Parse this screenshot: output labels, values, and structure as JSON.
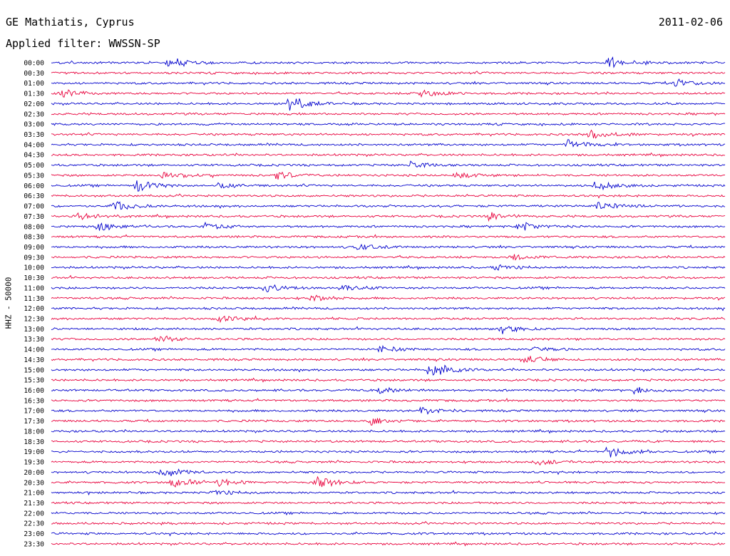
{
  "header": {
    "station": "GE Mathiatis, Cyprus",
    "date": "2011-02-06",
    "filter": "Applied filter: WWSSN-SP"
  },
  "chart_data": {
    "type": "line",
    "title": "GE Mathiatis, Cyprus",
    "subtitle": "Applied filter: WWSSN-SP",
    "ylabel": "HHZ - 50000",
    "xlabel": "",
    "colors": {
      "even_rows": "#0000cc",
      "odd_rows": "#e8003c"
    },
    "row_labels": [
      "00:00",
      "00:30",
      "01:00",
      "01:30",
      "02:00",
      "02:30",
      "03:00",
      "03:30",
      "04:00",
      "04:30",
      "05:00",
      "05:30",
      "06:00",
      "06:30",
      "07:00",
      "07:30",
      "08:00",
      "08:30",
      "09:00",
      "09:30",
      "10:00",
      "10:30",
      "11:00",
      "11:30",
      "12:00",
      "12:30",
      "13:00",
      "13:30",
      "14:00",
      "14:30",
      "15:00",
      "15:30",
      "16:00",
      "16:30",
      "17:00",
      "17:30",
      "18:00",
      "18:30",
      "19:00",
      "19:30",
      "20:00",
      "20:30",
      "21:00",
      "21:30",
      "22:00",
      "22:30",
      "23:00",
      "23:30"
    ],
    "row_duration_minutes": 30,
    "events": [
      {
        "row": 0,
        "minute": 5.2,
        "amp": 1.0
      },
      {
        "row": 0,
        "minute": 24.8,
        "amp": 0.9
      },
      {
        "row": 2,
        "minute": 27.8,
        "amp": 0.6
      },
      {
        "row": 3,
        "minute": 0.4,
        "amp": 0.9
      },
      {
        "row": 3,
        "minute": 16.5,
        "amp": 0.8
      },
      {
        "row": 4,
        "minute": 10.5,
        "amp": 1.3
      },
      {
        "row": 7,
        "minute": 24.0,
        "amp": 0.7
      },
      {
        "row": 8,
        "minute": 23.0,
        "amp": 0.7
      },
      {
        "row": 10,
        "minute": 16.0,
        "amp": 0.5
      },
      {
        "row": 11,
        "minute": 5.0,
        "amp": 0.8
      },
      {
        "row": 11,
        "minute": 10.0,
        "amp": 0.7
      },
      {
        "row": 11,
        "minute": 18.0,
        "amp": 0.6
      },
      {
        "row": 12,
        "minute": 3.8,
        "amp": 1.1
      },
      {
        "row": 12,
        "minute": 7.5,
        "amp": 0.7
      },
      {
        "row": 12,
        "minute": 24.2,
        "amp": 0.9
      },
      {
        "row": 14,
        "minute": 2.8,
        "amp": 1.0
      },
      {
        "row": 14,
        "minute": 24.3,
        "amp": 0.8
      },
      {
        "row": 15,
        "minute": 1.2,
        "amp": 0.7
      },
      {
        "row": 15,
        "minute": 19.5,
        "amp": 0.6
      },
      {
        "row": 16,
        "minute": 2.1,
        "amp": 0.8
      },
      {
        "row": 16,
        "minute": 6.8,
        "amp": 0.7
      },
      {
        "row": 16,
        "minute": 20.8,
        "amp": 0.8
      },
      {
        "row": 18,
        "minute": 13.5,
        "amp": 0.6
      },
      {
        "row": 19,
        "minute": 20.5,
        "amp": 0.6
      },
      {
        "row": 20,
        "minute": 19.8,
        "amp": 0.6
      },
      {
        "row": 22,
        "minute": 9.5,
        "amp": 0.8
      },
      {
        "row": 22,
        "minute": 12.8,
        "amp": 0.6
      },
      {
        "row": 23,
        "minute": 11.6,
        "amp": 0.5
      },
      {
        "row": 25,
        "minute": 7.5,
        "amp": 0.5
      },
      {
        "row": 26,
        "minute": 20.0,
        "amp": 0.8
      },
      {
        "row": 27,
        "minute": 4.7,
        "amp": 0.8
      },
      {
        "row": 28,
        "minute": 14.6,
        "amp": 0.6
      },
      {
        "row": 28,
        "minute": 21.4,
        "amp": 0.6
      },
      {
        "row": 29,
        "minute": 21.0,
        "amp": 0.7
      },
      {
        "row": 30,
        "minute": 16.8,
        "amp": 1.4
      },
      {
        "row": 32,
        "minute": 14.6,
        "amp": 0.6
      },
      {
        "row": 32,
        "minute": 26.0,
        "amp": 0.6
      },
      {
        "row": 34,
        "minute": 16.5,
        "amp": 0.7
      },
      {
        "row": 35,
        "minute": 14.2,
        "amp": 0.6
      },
      {
        "row": 38,
        "minute": 24.8,
        "amp": 1.1
      },
      {
        "row": 39,
        "minute": 21.5,
        "amp": 0.5
      },
      {
        "row": 40,
        "minute": 4.9,
        "amp": 0.9
      },
      {
        "row": 41,
        "minute": 5.3,
        "amp": 0.8
      },
      {
        "row": 41,
        "minute": 7.4,
        "amp": 0.7
      },
      {
        "row": 41,
        "minute": 11.8,
        "amp": 1.1
      },
      {
        "row": 42,
        "minute": 7.2,
        "amp": 0.6
      }
    ]
  }
}
